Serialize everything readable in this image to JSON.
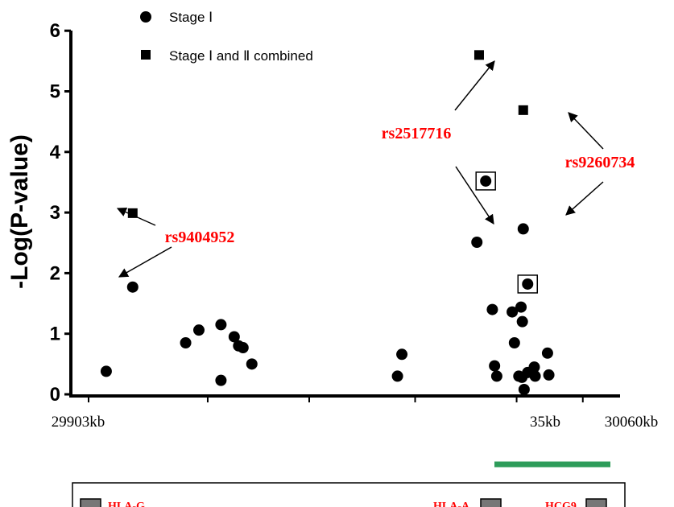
{
  "chart_data": {
    "type": "scatter",
    "ylabel": "-Log(P-value)",
    "ylim": [
      0,
      6
    ],
    "yticks": [
      "0",
      "1",
      "2",
      "3",
      "4",
      "5",
      "6"
    ],
    "xticks": [
      "29903kb",
      "35kb",
      "30060kb"
    ],
    "legend": {
      "position": "top-left",
      "entries": [
        {
          "label": "Stage Ⅰ",
          "marker": "circle"
        },
        {
          "label": "Stage Ⅰ and Ⅱ combined",
          "marker": "square"
        }
      ]
    },
    "series": [
      {
        "name": "Stage Ⅰ",
        "marker": "circle",
        "points": [
          {
            "x": 0.04,
            "y": 0.38
          },
          {
            "x": 0.1,
            "y": 1.77
          },
          {
            "x": 0.22,
            "y": 0.85
          },
          {
            "x": 0.25,
            "y": 1.06
          },
          {
            "x": 0.3,
            "y": 0.23
          },
          {
            "x": 0.3,
            "y": 1.15
          },
          {
            "x": 0.33,
            "y": 0.95
          },
          {
            "x": 0.34,
            "y": 0.8
          },
          {
            "x": 0.35,
            "y": 0.77
          },
          {
            "x": 0.37,
            "y": 0.5
          },
          {
            "x": 0.7,
            "y": 0.3
          },
          {
            "x": 0.71,
            "y": 0.66
          },
          {
            "x": 0.88,
            "y": 2.51
          },
          {
            "x": 0.9,
            "y": 3.52
          },
          {
            "x": 0.915,
            "y": 1.4
          },
          {
            "x": 0.92,
            "y": 0.47
          },
          {
            "x": 0.925,
            "y": 0.3
          },
          {
            "x": 0.96,
            "y": 1.36
          },
          {
            "x": 0.965,
            "y": 0.85
          },
          {
            "x": 0.975,
            "y": 0.3
          },
          {
            "x": 0.98,
            "y": 1.44
          },
          {
            "x": 0.982,
            "y": 0.28
          },
          {
            "x": 0.983,
            "y": 1.2
          },
          {
            "x": 0.985,
            "y": 2.73
          },
          {
            "x": 0.987,
            "y": 0.08
          },
          {
            "x": 0.995,
            "y": 1.82
          },
          {
            "x": 0.995,
            "y": 0.36
          },
          {
            "x": 1.01,
            "y": 0.45
          },
          {
            "x": 1.012,
            "y": 0.3
          },
          {
            "x": 1.04,
            "y": 0.68
          },
          {
            "x": 1.043,
            "y": 0.32
          }
        ]
      },
      {
        "name": "Stage Ⅰ and Ⅱ combined",
        "marker": "square",
        "points": [
          {
            "x": 0.1,
            "y": 2.99
          },
          {
            "x": 0.885,
            "y": 5.6
          },
          {
            "x": 0.985,
            "y": 4.69
          }
        ]
      }
    ],
    "boxed_points": [
      {
        "x": 0.9,
        "y": 3.52
      },
      {
        "x": 0.995,
        "y": 1.82
      }
    ],
    "annotations": [
      {
        "text": "rs9404952",
        "color": "#ff0000",
        "arrows_to": [
          {
            "x": 0.1,
            "y": 2.99
          },
          {
            "x": 0.1,
            "y": 1.77
          }
        ]
      },
      {
        "text": "rs2517716",
        "color": "#ff0000",
        "arrows_to": [
          {
            "x": 0.885,
            "y": 5.6
          },
          {
            "x": 0.88,
            "y": 2.51
          }
        ]
      },
      {
        "text": "rs9260734",
        "color": "#ff0000",
        "arrows_to": [
          {
            "x": 0.985,
            "y": 4.69
          },
          {
            "x": 0.985,
            "y": 2.73
          }
        ]
      }
    ],
    "highlight_bar": {
      "color": "#2e9c5a",
      "x_from": 0.89,
      "x_to": 1.12
    },
    "genes": [
      {
        "label": "HLA-G",
        "color": "#ff0000"
      },
      {
        "label": "HLA-A",
        "color": "#ff0000"
      },
      {
        "label": "HCG9",
        "color": "#ff0000"
      }
    ]
  }
}
